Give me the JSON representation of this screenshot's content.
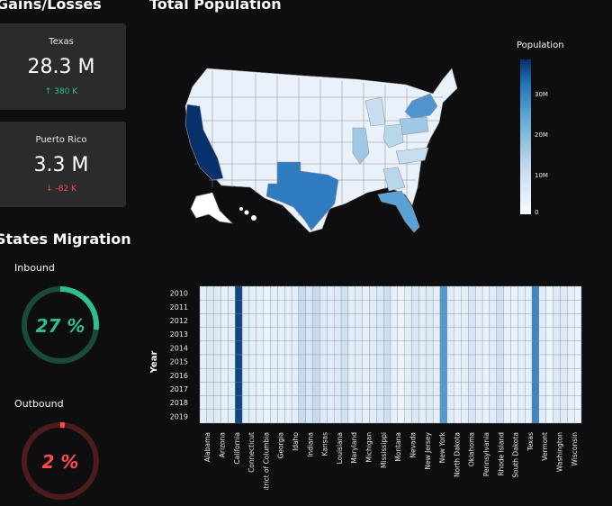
{
  "gains_losses": {
    "title": "Gains/Losses",
    "cards": [
      {
        "state": "Texas",
        "value": "28.3 M",
        "delta": "380 K",
        "direction": "up",
        "color": "#2fbf8f"
      },
      {
        "state": "Puerto Rico",
        "value": "3.3 M",
        "delta": "-82 K",
        "direction": "down",
        "color": "#ff4b4b"
      }
    ]
  },
  "migration": {
    "title": "States Migration",
    "inbound": {
      "label": "Inbound",
      "value": "27 %",
      "percent": 27,
      "color": "#2fbf8f"
    },
    "outbound": {
      "label": "Outbound",
      "value": "2 %",
      "percent": 2,
      "color": "#ff4b4b"
    }
  },
  "population": {
    "title": "Total Population",
    "legend_title": "Population",
    "legend_ticks": [
      "30M",
      "20M",
      "10M",
      "0"
    ]
  },
  "chart_data": {
    "type": "heatmap",
    "ylabel": "Year",
    "years": [
      "2010",
      "2011",
      "2012",
      "2013",
      "2014",
      "2015",
      "2016",
      "2017",
      "2018",
      "2019"
    ],
    "x_labels": [
      "Alabama",
      "Arizona",
      "California",
      "Connecticut",
      "District of Columbia",
      "Georgia",
      "Idaho",
      "Indiana",
      "Kansas",
      "Louisiana",
      "Maryland",
      "Michigan",
      "Mississippi",
      "Montana",
      "Nevada",
      "New Jersey",
      "New York",
      "North Dakota",
      "Oklahoma",
      "Pennsylvania",
      "Rhode Island",
      "South Dakota",
      "Texas",
      "Vermont",
      "Washington",
      "Wisconsin"
    ],
    "columns": [
      0.12,
      0.18,
      0.16,
      0.1,
      0.12,
      0.95,
      0.15,
      0.12,
      0.1,
      0.08,
      0.12,
      0.1,
      0.12,
      0.12,
      0.3,
      0.2,
      0.3,
      0.16,
      0.14,
      0.16,
      0.24,
      0.12,
      0.14,
      0.1,
      0.14,
      0.18,
      0.26,
      0.1,
      0.06,
      0.12,
      0.18,
      0.14,
      0.16,
      0.12,
      0.68,
      0.14,
      0.1,
      0.12,
      0.2,
      0.12,
      0.08,
      0.14,
      0.24,
      0.1,
      0.08,
      0.12,
      0.1,
      0.76,
      0.14,
      0.06,
      0.16,
      0.16,
      0.1,
      0.08
    ]
  }
}
